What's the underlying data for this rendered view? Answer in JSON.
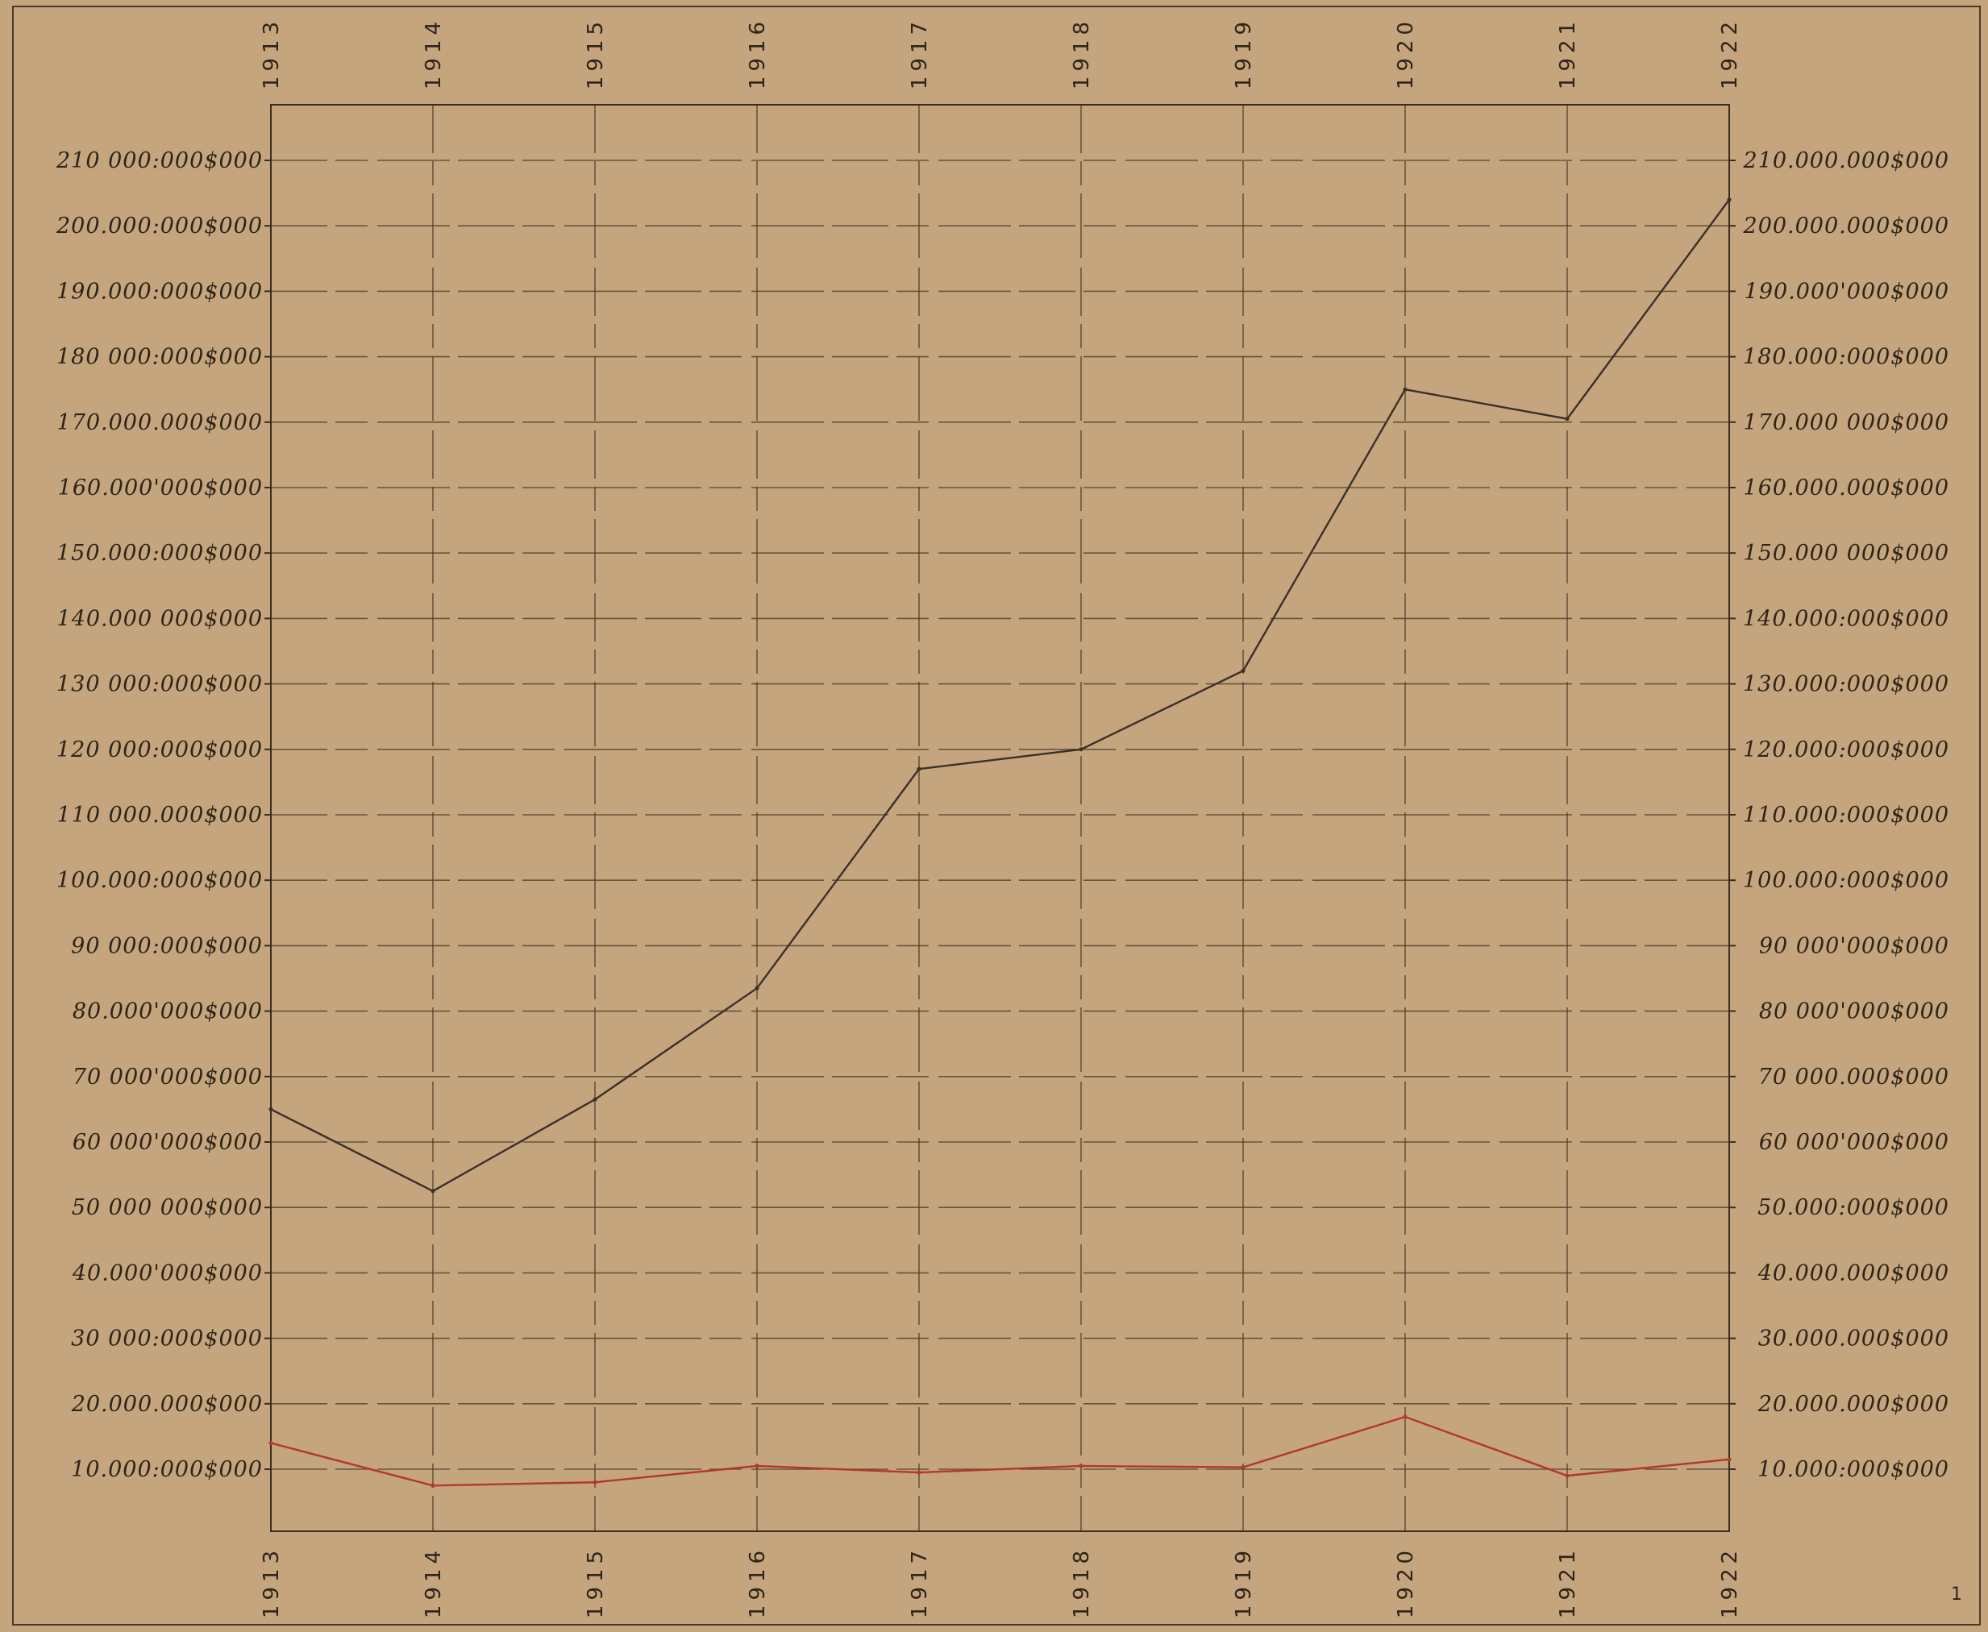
{
  "colors": {
    "paper": "#c4a57e",
    "ink": "#2e2418",
    "series_dark": "#3b3028",
    "series_red": "#b5362b"
  },
  "chart_data": {
    "type": "line",
    "x": [
      "1913",
      "1914",
      "1915",
      "1916",
      "1917",
      "1918",
      "1919",
      "1920",
      "1921",
      "1922"
    ],
    "ylim": [
      0,
      210000000
    ],
    "yticks": [
      10000000,
      20000000,
      30000000,
      40000000,
      50000000,
      60000000,
      70000000,
      80000000,
      90000000,
      100000000,
      110000000,
      120000000,
      130000000,
      140000000,
      150000000,
      160000000,
      170000000,
      180000000,
      190000000,
      200000000,
      210000000
    ],
    "ytick_labels_left": [
      "10.000:000$000",
      "20.000.000$000",
      "30 000:000$000",
      "40.000'000$000",
      "50 000 000$000",
      "60 000'000$000",
      "70 000'000$000",
      "80.000'000$000",
      "90 000:000$000",
      "100.000:000$000",
      "110 000.000$000",
      "120 000:000$000",
      "130 000:000$000",
      "140.000 000$000",
      "150.000:000$000",
      "160.000'000$000",
      "170.000.000$000",
      "180 000:000$000",
      "190.000:000$000",
      "200.000:000$000",
      "210 000:000$000"
    ],
    "ytick_labels_right": [
      "10.000:000$000",
      "20.000.000$000",
      "30.000.000$000",
      "40.000.000$000",
      "50.000:000$000",
      "60 000'000$000",
      "70 000.000$000",
      "80 000'000$000",
      "90 000'000$000",
      "100.000:000$000",
      "110.000:000$000",
      "120.000:000$000",
      "130.000:000$000",
      "140.000:000$000",
      "150.000 000$000",
      "160.000.000$000",
      "170.000 000$000",
      "180.000:000$000",
      "190.000'000$000",
      "200.000.000$000",
      "210.000.000$000"
    ],
    "grid": true,
    "series": [
      {
        "color": "#3b3028",
        "values": [
          65000000,
          52500000,
          66500000,
          83500000,
          117000000,
          120000000,
          132000000,
          175000000,
          170500000,
          204000000
        ]
      },
      {
        "color": "#b5362b",
        "values": [
          14000000,
          7500000,
          8000000,
          10500000,
          9500000,
          10500000,
          10300000,
          18000000,
          9000000,
          11500000
        ]
      }
    ],
    "annotations": [
      "1"
    ]
  }
}
